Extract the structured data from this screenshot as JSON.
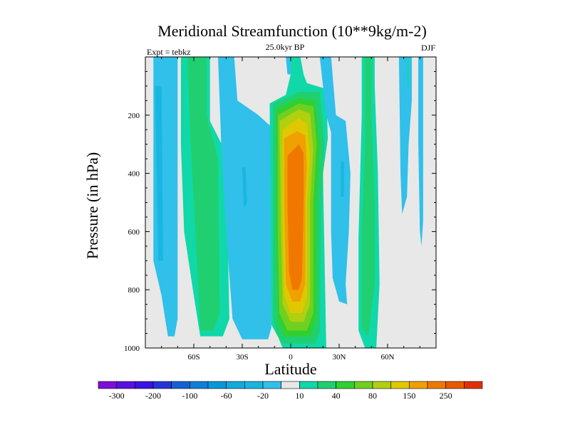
{
  "chart_data": {
    "type": "heatmap",
    "title": "Meridional Streamfunction (10**9kg/m-2)",
    "subtitle": "25.0kyr BP",
    "left_note": "Expt = tebkz",
    "right_note": "DJF",
    "xlabel": "Latitude",
    "ylabel": "Pressure (in hPa)",
    "xlim": [
      -90,
      90
    ],
    "ylim": [
      1000,
      0
    ],
    "x_ticks": [
      {
        "value": -60,
        "label": "60S"
      },
      {
        "value": -30,
        "label": "30S"
      },
      {
        "value": 0,
        "label": "0"
      },
      {
        "value": 30,
        "label": "30N"
      },
      {
        "value": 60,
        "label": "60N"
      }
    ],
    "y_ticks": [
      {
        "value": 200,
        "label": "200"
      },
      {
        "value": 400,
        "label": "400"
      },
      {
        "value": 600,
        "label": "600"
      },
      {
        "value": 800,
        "label": "800"
      },
      {
        "value": 1000,
        "label": "1000"
      }
    ],
    "background_color": "#e8e8e8",
    "colorbar": {
      "bounds": [
        -400,
        -300,
        -250,
        -200,
        -150,
        -100,
        -80,
        -60,
        -40,
        -20,
        -10,
        10,
        20,
        40,
        60,
        80,
        100,
        150,
        200,
        250,
        300,
        400
      ],
      "colors": [
        "#7d0fd8",
        "#5a10e0",
        "#3a12e2",
        "#2535d8",
        "#1560d5",
        "#0b80d8",
        "#0898d8",
        "#10aadc",
        "#18b6e0",
        "#30c0ea",
        "#e8e8e8",
        "#10d8a8",
        "#20d070",
        "#30d030",
        "#70d020",
        "#b0d010",
        "#e0c800",
        "#f0a000",
        "#f07800",
        "#e85a00",
        "#e03000"
      ],
      "labels": [
        {
          "value": -300,
          "label": "-300"
        },
        {
          "value": -200,
          "label": "-200"
        },
        {
          "value": -100,
          "label": "-100"
        },
        {
          "value": -60,
          "label": "-60"
        },
        {
          "value": -20,
          "label": "-20"
        },
        {
          "value": 10,
          "label": "10"
        },
        {
          "value": 40,
          "label": "40"
        },
        {
          "value": 80,
          "label": "80"
        },
        {
          "value": 150,
          "label": "150"
        },
        {
          "value": 250,
          "label": "250"
        }
      ]
    },
    "contour_regions": [
      {
        "name": "sh-polar-cell",
        "level": -20,
        "outline": [
          [
            -85,
            0
          ],
          [
            -70,
            0
          ],
          [
            -70,
            900
          ],
          [
            -72,
            960
          ],
          [
            -76,
            960
          ],
          [
            -80,
            820
          ],
          [
            -85,
            700
          ]
        ]
      },
      {
        "name": "sh-polar-core",
        "level": -40,
        "outline": [
          [
            -84,
            100
          ],
          [
            -80,
            100
          ],
          [
            -79,
            700
          ],
          [
            -82,
            700
          ]
        ]
      },
      {
        "name": "sh-ferrel-cell",
        "level": 10,
        "outline": [
          [
            -68,
            0
          ],
          [
            -50,
            0
          ],
          [
            -50,
            220
          ],
          [
            -40,
            330
          ],
          [
            -38,
            900
          ],
          [
            -42,
            960
          ],
          [
            -56,
            960
          ],
          [
            -60,
            820
          ],
          [
            -66,
            600
          ],
          [
            -68,
            300
          ]
        ]
      },
      {
        "name": "sh-ferrel-core",
        "level": 20,
        "outline": [
          [
            -64,
            0
          ],
          [
            -52,
            0
          ],
          [
            -52,
            200
          ],
          [
            -45,
            350
          ],
          [
            -44,
            880
          ],
          [
            -48,
            940
          ],
          [
            -56,
            940
          ],
          [
            -58,
            700
          ],
          [
            -62,
            300
          ]
        ]
      },
      {
        "name": "sh-subtrop-cell",
        "level": -20,
        "outline": [
          [
            -45,
            0
          ],
          [
            -35,
            0
          ],
          [
            -33,
            150
          ],
          [
            -20,
            200
          ],
          [
            -12,
            240
          ],
          [
            -12,
            930
          ],
          [
            -14,
            970
          ],
          [
            -30,
            970
          ],
          [
            -36,
            900
          ],
          [
            -40,
            600
          ],
          [
            -43,
            300
          ]
        ]
      },
      {
        "name": "sh-subtrop-core",
        "level": -40,
        "outline": [
          [
            -30,
            380
          ],
          [
            -28,
            380
          ],
          [
            -27,
            500
          ],
          [
            -29,
            520
          ]
        ]
      },
      {
        "name": "hadley-10",
        "level": 10,
        "outline": [
          [
            -13,
            160
          ],
          [
            -3,
            130
          ],
          [
            0,
            60
          ],
          [
            0,
            0
          ],
          [
            6,
            0
          ],
          [
            8,
            60
          ],
          [
            10,
            90
          ],
          [
            22,
            110
          ],
          [
            23,
            280
          ],
          [
            20,
            400
          ],
          [
            22,
            1000
          ],
          [
            -5,
            1000
          ],
          [
            -8,
            960
          ],
          [
            -12,
            920
          ]
        ]
      },
      {
        "name": "hadley-20",
        "level": 20,
        "outline": [
          [
            -11,
            160
          ],
          [
            5,
            120
          ],
          [
            18,
            120
          ],
          [
            21,
            300
          ],
          [
            19,
            500
          ],
          [
            18,
            950
          ],
          [
            15,
            985
          ],
          [
            -5,
            985
          ],
          [
            -9,
            950
          ],
          [
            -11,
            900
          ]
        ]
      },
      {
        "name": "hadley-40",
        "level": 40,
        "outline": [
          [
            -9,
            180
          ],
          [
            5,
            140
          ],
          [
            15,
            150
          ],
          [
            18,
            300
          ],
          [
            16,
            500
          ],
          [
            16,
            900
          ],
          [
            12,
            960
          ],
          [
            -4,
            960
          ],
          [
            -8,
            900
          ],
          [
            -9,
            600
          ]
        ]
      },
      {
        "name": "hadley-60",
        "level": 60,
        "outline": [
          [
            -8,
            200
          ],
          [
            5,
            160
          ],
          [
            14,
            170
          ],
          [
            16,
            300
          ],
          [
            14,
            500
          ],
          [
            14,
            880
          ],
          [
            10,
            940
          ],
          [
            -2,
            940
          ],
          [
            -7,
            880
          ],
          [
            -8,
            600
          ]
        ]
      },
      {
        "name": "hadley-80",
        "level": 80,
        "outline": [
          [
            -7,
            220
          ],
          [
            5,
            180
          ],
          [
            12,
            195
          ],
          [
            14,
            320
          ],
          [
            12,
            500
          ],
          [
            12,
            850
          ],
          [
            8,
            910
          ],
          [
            0,
            910
          ],
          [
            -5,
            850
          ],
          [
            -6,
            600
          ]
        ]
      },
      {
        "name": "hadley-100",
        "level": 100,
        "outline": [
          [
            -5,
            250
          ],
          [
            5,
            210
          ],
          [
            10,
            230
          ],
          [
            12,
            340
          ],
          [
            10,
            500
          ],
          [
            10,
            820
          ],
          [
            7,
            880
          ],
          [
            0,
            880
          ],
          [
            -4,
            820
          ],
          [
            -5,
            600
          ]
        ]
      },
      {
        "name": "hadley-150",
        "level": 150,
        "outline": [
          [
            -4,
            280
          ],
          [
            4,
            255
          ],
          [
            9,
            270
          ],
          [
            10,
            380
          ],
          [
            9,
            500
          ],
          [
            9,
            780
          ],
          [
            6,
            840
          ],
          [
            1,
            840
          ],
          [
            -3,
            780
          ],
          [
            -4,
            500
          ]
        ]
      },
      {
        "name": "hadley-200",
        "level": 200,
        "outline": [
          [
            -2,
            340
          ],
          [
            5,
            300
          ],
          [
            8,
            330
          ],
          [
            8,
            500
          ],
          [
            7,
            760
          ],
          [
            5,
            800
          ],
          [
            1,
            800
          ],
          [
            -1,
            740
          ],
          [
            -2,
            500
          ]
        ]
      },
      {
        "name": "north-upper-cell",
        "level": 10,
        "outline": [
          [
            -1,
            0
          ],
          [
            3,
            0
          ],
          [
            3,
            50
          ],
          [
            -1,
            50
          ]
        ]
      },
      {
        "name": "north-upper-cell-b",
        "level": -20,
        "outline": [
          [
            -3,
            0
          ],
          [
            0,
            0
          ],
          [
            0,
            60
          ],
          [
            -2,
            60
          ]
        ]
      },
      {
        "name": "nh-subtrop-cell",
        "level": -20,
        "outline": [
          [
            18,
            0
          ],
          [
            25,
            0
          ],
          [
            28,
            200
          ],
          [
            34,
            220
          ],
          [
            37,
            400
          ],
          [
            36,
            600
          ],
          [
            34,
            780
          ],
          [
            35,
            850
          ],
          [
            30,
            840
          ],
          [
            26,
            760
          ],
          [
            25,
            600
          ],
          [
            25,
            260
          ],
          [
            22,
            200
          ]
        ]
      },
      {
        "name": "nh-subtrop-core",
        "level": -40,
        "outline": [
          [
            31,
            360
          ],
          [
            33,
            360
          ],
          [
            33,
            480
          ],
          [
            31,
            480
          ]
        ]
      },
      {
        "name": "nh-ferrel-cell",
        "level": 10,
        "outline": [
          [
            44,
            0
          ],
          [
            52,
            0
          ],
          [
            52,
            100
          ],
          [
            54,
            400
          ],
          [
            55,
            780
          ],
          [
            53,
            1000
          ],
          [
            46,
            1000
          ],
          [
            42,
            940
          ],
          [
            42,
            620
          ],
          [
            44,
            200
          ]
        ]
      },
      {
        "name": "nh-ferrel-core",
        "level": 20,
        "outline": [
          [
            46,
            0
          ],
          [
            50,
            0
          ],
          [
            50,
            200
          ],
          [
            52,
            500
          ],
          [
            52,
            780
          ],
          [
            48,
            960
          ],
          [
            44,
            930
          ],
          [
            44,
            600
          ],
          [
            46,
            300
          ]
        ]
      },
      {
        "name": "nh-polar-cell",
        "level": -20,
        "outline": [
          [
            67,
            0
          ],
          [
            75,
            0
          ],
          [
            75,
            150
          ],
          [
            73,
            300
          ],
          [
            72,
            480
          ],
          [
            69,
            540
          ],
          [
            68,
            400
          ]
        ]
      },
      {
        "name": "nh-far-polar",
        "level": -20,
        "outline": [
          [
            79,
            0
          ],
          [
            82,
            0
          ],
          [
            82,
            560
          ],
          [
            81,
            650
          ],
          [
            80,
            600
          ],
          [
            79,
            300
          ]
        ]
      },
      {
        "name": "nh-polar-core",
        "level": 10,
        "outline": [
          [
            72,
            0
          ],
          [
            73,
            0
          ],
          [
            73,
            100
          ],
          [
            72,
            100
          ]
        ]
      }
    ]
  }
}
